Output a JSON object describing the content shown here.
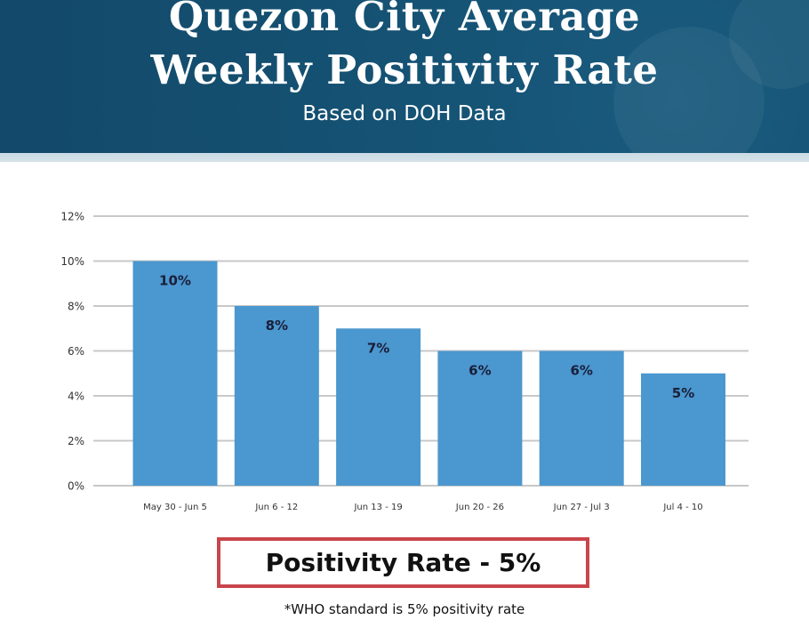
{
  "header": {
    "title_line1": "Quezon City Average",
    "title_line2": "Weekly Positivity Rate",
    "subtitle": "Based on DOH Data"
  },
  "colors": {
    "header_bg": "#144f70",
    "bar": "#4b97cf",
    "gridline": "#c8c8c8",
    "box_border": "#c9454b",
    "label_text": "#1a1f3a"
  },
  "chart_data": {
    "type": "bar",
    "title": "Quezon City Average Weekly Positivity Rate",
    "subtitle": "Based on DOH Data",
    "categories": [
      "May 30 - Jun 5",
      "Jun 6 - 12",
      "Jun 13 - 19",
      "Jun 20 - 26",
      "Jun 27 - Jul 3",
      "Jul 4 - 10"
    ],
    "values": [
      10,
      8,
      7,
      6,
      6,
      5
    ],
    "data_labels": [
      "10%",
      "8%",
      "7%",
      "6%",
      "6%",
      "5%"
    ],
    "xlabel": "",
    "ylabel": "",
    "ylim": [
      0,
      12
    ],
    "yticks": [
      0,
      2,
      4,
      6,
      8,
      10,
      12
    ],
    "ytick_labels": [
      "0%",
      "2%",
      "4%",
      "6%",
      "8%",
      "10%",
      "12%"
    ],
    "grid": true,
    "legend": "none"
  },
  "summary": {
    "label": "Positivity Rate - 5%",
    "footnote": "*WHO standard is 5% positivity rate"
  }
}
